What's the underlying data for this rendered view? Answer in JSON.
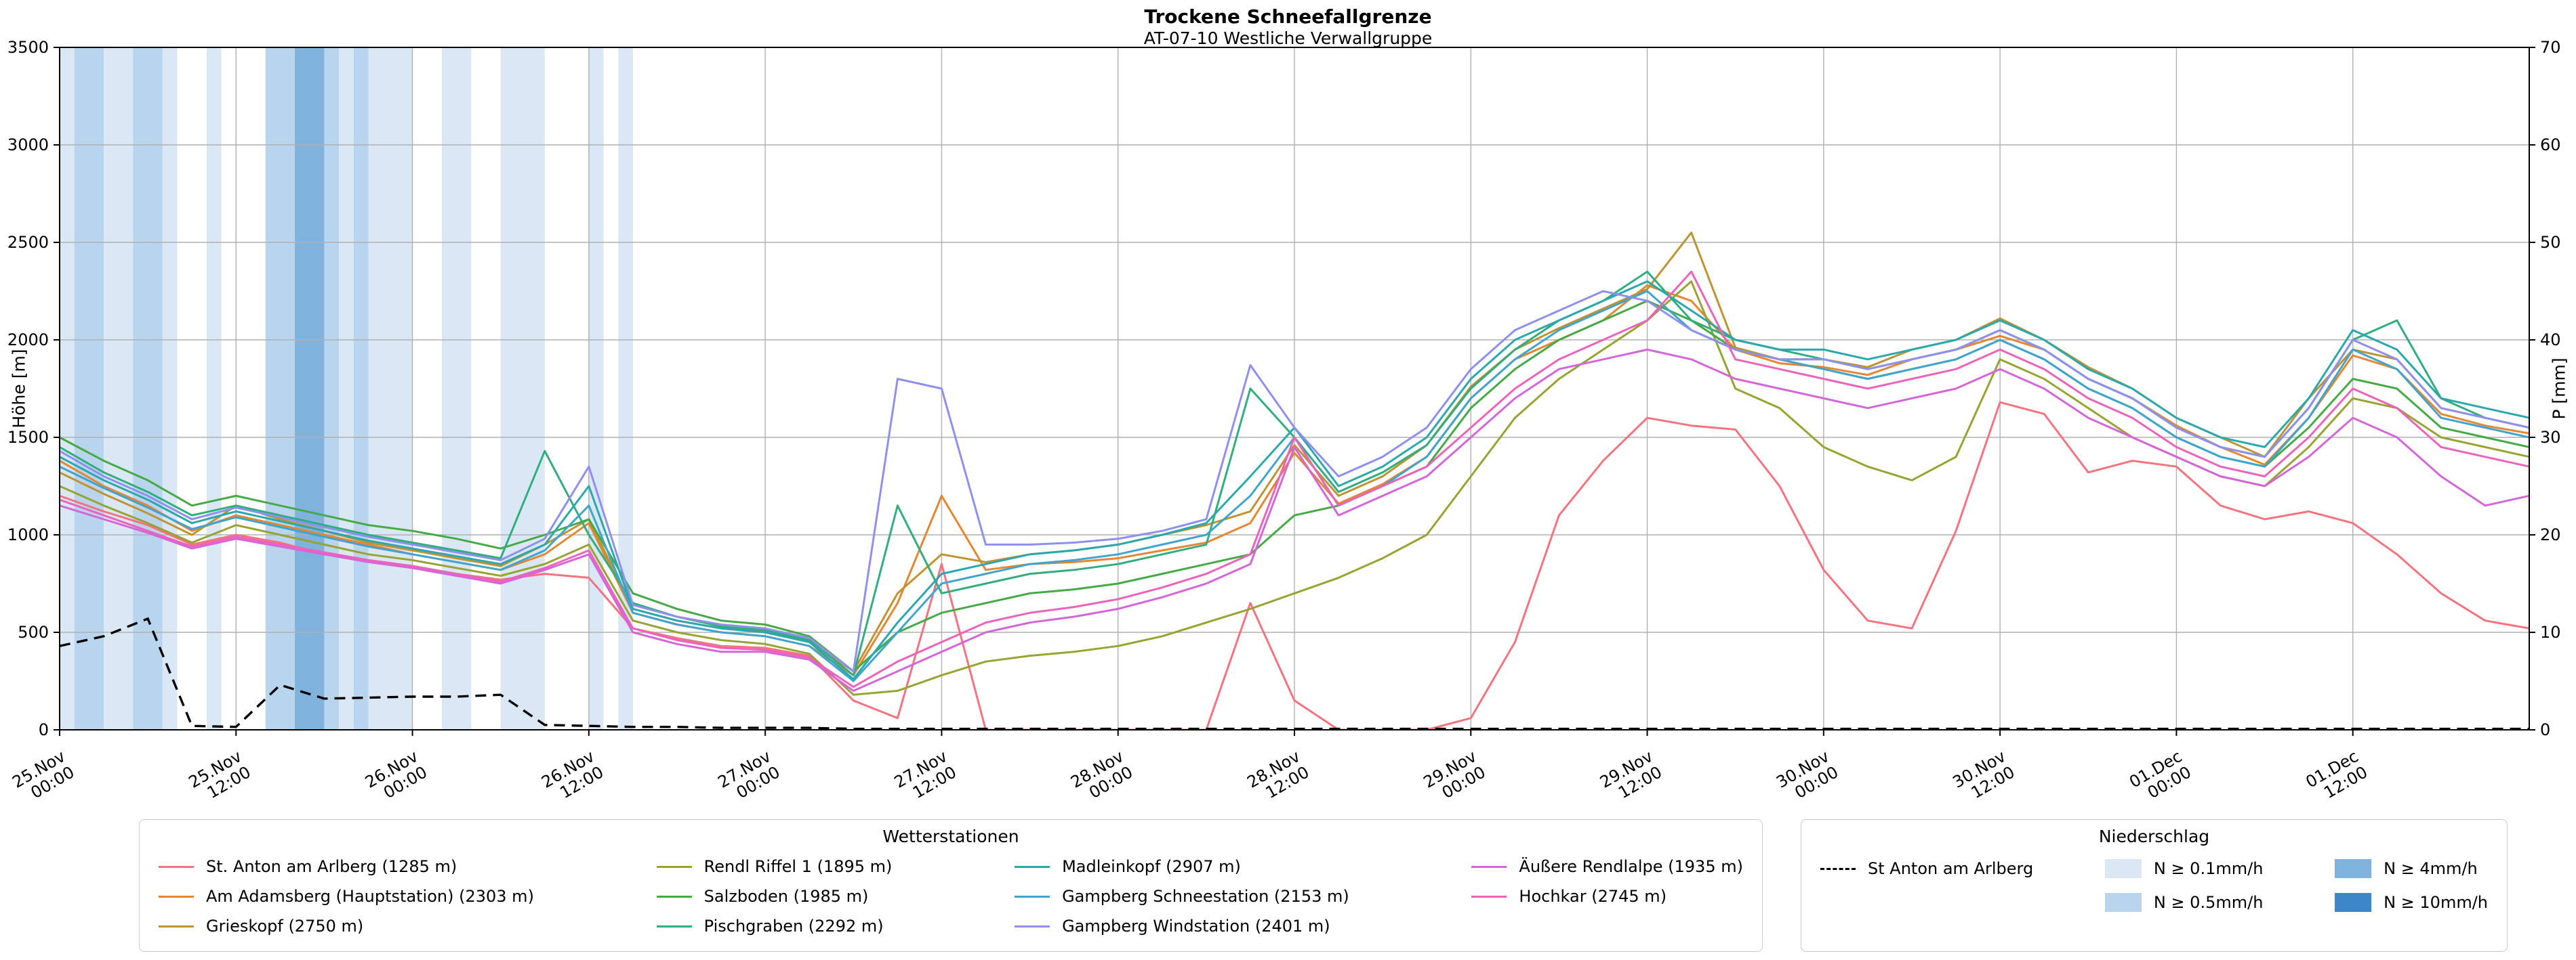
{
  "title": "Trockene Schneefallgrenze",
  "subtitle": "AT-07-10 Westliche Verwallgruppe",
  "axes": {
    "y_left_label": "Höhe [m]",
    "y_right_label": "P [mm]",
    "y_left_ticks": [
      0,
      500,
      1000,
      1500,
      2000,
      2500,
      3000,
      3500
    ],
    "y_right_ticks": [
      0,
      10,
      20,
      30,
      40,
      50,
      60,
      70
    ],
    "x_ticks": [
      {
        "h": 0,
        "date": "25.Nov",
        "time": "00:00"
      },
      {
        "h": 12,
        "date": "25.Nov",
        "time": "12:00"
      },
      {
        "h": 24,
        "date": "26.Nov",
        "time": "00:00"
      },
      {
        "h": 36,
        "date": "26.Nov",
        "time": "12:00"
      },
      {
        "h": 48,
        "date": "27.Nov",
        "time": "00:00"
      },
      {
        "h": 60,
        "date": "27.Nov",
        "time": "12:00"
      },
      {
        "h": 72,
        "date": "28.Nov",
        "time": "00:00"
      },
      {
        "h": 84,
        "date": "28.Nov",
        "time": "12:00"
      },
      {
        "h": 96,
        "date": "29.Nov",
        "time": "00:00"
      },
      {
        "h": 108,
        "date": "29.Nov",
        "time": "12:00"
      },
      {
        "h": 120,
        "date": "30.Nov",
        "time": "00:00"
      },
      {
        "h": 132,
        "date": "30.Nov",
        "time": "12:00"
      },
      {
        "h": 144,
        "date": "01.Dec",
        "time": "00:00"
      },
      {
        "h": 156,
        "date": "01.Dec",
        "time": "12:00"
      }
    ]
  },
  "legend_stations": {
    "title": "Wetterstationen"
  },
  "legend_precip": {
    "title": "Niederschlag",
    "line_label": "St Anton am Arlberg",
    "levels": [
      {
        "label": "N ≥ 0.1mm/h",
        "color": "#dae8f6"
      },
      {
        "label": "N ≥ 0.5mm/h",
        "color": "#b9d5ee"
      },
      {
        "label": "N ≥ 4mm/h",
        "color": "#7fb3de"
      },
      {
        "label": "N ≥ 10mm/h",
        "color": "#3d87c8"
      }
    ]
  },
  "chart_data": {
    "type": "line",
    "title": "Trockene Schneefallgrenze",
    "grid": true,
    "xlim_hours": [
      0,
      168
    ],
    "ylim_left": [
      0,
      3500
    ],
    "ylim_right": [
      0,
      70
    ],
    "hours": [
      0,
      3,
      6,
      9,
      12,
      15,
      18,
      21,
      24,
      27,
      30,
      33,
      36,
      39,
      42,
      45,
      48,
      51,
      54,
      57,
      60,
      63,
      66,
      69,
      72,
      75,
      78,
      81,
      84,
      87,
      90,
      93,
      96,
      99,
      102,
      105,
      108,
      111,
      114,
      117,
      120,
      123,
      126,
      129,
      132,
      135,
      138,
      141,
      144,
      147,
      150,
      153,
      156,
      159,
      162,
      165,
      168
    ],
    "series": [
      {
        "name": "St. Anton am Arlberg (1285 m)",
        "color": "#f4737f",
        "values_m": [
          1200,
          1120,
          1050,
          950,
          1000,
          960,
          900,
          870,
          840,
          800,
          770,
          800,
          780,
          520,
          470,
          430,
          420,
          380,
          150,
          60,
          850,
          0,
          0,
          0,
          0,
          0,
          0,
          650,
          150,
          0,
          0,
          0,
          60,
          450,
          1100,
          1380,
          1600,
          1560,
          1540,
          1250,
          820,
          560,
          520,
          1020,
          1680,
          1620,
          1320,
          1380,
          1350,
          1150,
          1080,
          1120,
          1060,
          900,
          700,
          560,
          520
        ]
      },
      {
        "name": "Am Adamsberg (Hauptstation) (2303 m)",
        "color": "#e6862f",
        "values_m": [
          1380,
          1250,
          1150,
          1020,
          1100,
          1050,
          1000,
          950,
          900,
          860,
          820,
          900,
          1060,
          600,
          540,
          500,
          480,
          430,
          280,
          650,
          1200,
          820,
          850,
          860,
          880,
          920,
          960,
          1060,
          1420,
          1160,
          1260,
          1400,
          1700,
          1900,
          2000,
          2100,
          2280,
          2200,
          1950,
          1880,
          1860,
          1820,
          1900,
          1950,
          2020,
          1950,
          1800,
          1700,
          1560,
          1450,
          1360,
          1600,
          1920,
          1850,
          1620,
          1560,
          1520
        ]
      },
      {
        "name": "Grieskopf (2750 m)",
        "color": "#bf9430",
        "values_m": [
          1320,
          1210,
          1110,
          1000,
          1150,
          1080,
          1020,
          960,
          920,
          880,
          840,
          950,
          1080,
          620,
          560,
          520,
          500,
          450,
          300,
          700,
          900,
          860,
          900,
          920,
          950,
          1000,
          1050,
          1120,
          1460,
          1200,
          1300,
          1460,
          1760,
          1950,
          2060,
          2160,
          2260,
          2550,
          1960,
          1900,
          1900,
          1860,
          1950,
          2000,
          2110,
          2000,
          1860,
          1750,
          1600,
          1500,
          1400,
          1700,
          1950,
          1900,
          1650,
          1600,
          1550
        ]
      },
      {
        "name": "Rendl Riffel 1 (1895 m)",
        "color": "#97a431",
        "values_m": [
          1250,
          1150,
          1060,
          960,
          1050,
          1000,
          950,
          900,
          870,
          830,
          790,
          850,
          950,
          560,
          500,
          460,
          440,
          390,
          180,
          200,
          280,
          350,
          380,
          400,
          430,
          480,
          550,
          620,
          700,
          780,
          880,
          1000,
          1300,
          1600,
          1800,
          1950,
          2100,
          2300,
          1750,
          1650,
          1450,
          1350,
          1280,
          1400,
          1900,
          1800,
          1650,
          1500,
          1400,
          1300,
          1250,
          1450,
          1700,
          1650,
          1500,
          1450,
          1400
        ]
      },
      {
        "name": "Salzboden (1985 m)",
        "color": "#45aa45",
        "values_m": [
          1500,
          1380,
          1280,
          1150,
          1200,
          1150,
          1100,
          1050,
          1020,
          980,
          930,
          1000,
          1080,
          700,
          620,
          560,
          540,
          480,
          300,
          500,
          600,
          650,
          700,
          720,
          750,
          800,
          850,
          900,
          1100,
          1150,
          1250,
          1350,
          1650,
          1850,
          2000,
          2100,
          2200,
          2100,
          1950,
          1900,
          1850,
          1800,
          1850,
          1900,
          2000,
          1900,
          1750,
          1650,
          1500,
          1400,
          1350,
          1550,
          1800,
          1750,
          1550,
          1500,
          1450
        ]
      },
      {
        "name": "Pischgraben (2292 m)",
        "color": "#30ae7e",
        "values_m": [
          1450,
          1320,
          1220,
          1100,
          1150,
          1100,
          1050,
          1000,
          960,
          920,
          880,
          1430,
          1000,
          650,
          580,
          530,
          510,
          460,
          280,
          1150,
          700,
          750,
          800,
          820,
          850,
          900,
          950,
          1750,
          1500,
          1220,
          1320,
          1460,
          1750,
          1950,
          2100,
          2200,
          2350,
          2100,
          2000,
          1950,
          1900,
          1850,
          1900,
          1950,
          2050,
          1950,
          1800,
          1700,
          1550,
          1450,
          1400,
          1650,
          2000,
          2100,
          1700,
          1600,
          1550
        ]
      },
      {
        "name": "Madleinkopf (2907 m)",
        "color": "#2aa8ad",
        "values_m": [
          1400,
          1280,
          1180,
          1060,
          1120,
          1070,
          1020,
          970,
          930,
          890,
          850,
          950,
          1250,
          620,
          560,
          520,
          500,
          450,
          260,
          550,
          800,
          850,
          900,
          920,
          950,
          1000,
          1060,
          1300,
          1550,
          1250,
          1350,
          1500,
          1800,
          2000,
          2100,
          2200,
          2300,
          2150,
          2000,
          1950,
          1950,
          1900,
          1950,
          2000,
          2100,
          2000,
          1850,
          1750,
          1600,
          1500,
          1450,
          1700,
          2050,
          1950,
          1700,
          1650,
          1600
        ]
      },
      {
        "name": "Gampberg Schneestation (2153 m)",
        "color": "#3fa5cf",
        "values_m": [
          1350,
          1240,
          1140,
          1030,
          1090,
          1040,
          990,
          940,
          900,
          860,
          820,
          920,
          1150,
          600,
          540,
          500,
          480,
          430,
          250,
          500,
          750,
          800,
          850,
          870,
          900,
          950,
          1000,
          1200,
          1500,
          1150,
          1250,
          1400,
          1700,
          1900,
          2050,
          2150,
          2250,
          2050,
          1950,
          1900,
          1850,
          1800,
          1850,
          1900,
          2000,
          1900,
          1750,
          1650,
          1500,
          1400,
          1350,
          1600,
          1950,
          1850,
          1600,
          1550,
          1500
        ]
      },
      {
        "name": "Gampberg Windstation (2401 m)",
        "color": "#8f8fed",
        "values_m": [
          1430,
          1300,
          1200,
          1080,
          1140,
          1090,
          1040,
          990,
          950,
          910,
          870,
          980,
          1350,
          640,
          580,
          540,
          520,
          470,
          300,
          1800,
          1750,
          950,
          950,
          960,
          980,
          1020,
          1080,
          1870,
          1550,
          1300,
          1400,
          1550,
          1850,
          2050,
          2150,
          2250,
          2200,
          2050,
          1950,
          1900,
          1900,
          1850,
          1900,
          1950,
          2050,
          1950,
          1800,
          1700,
          1550,
          1450,
          1400,
          1650,
          2000,
          1900,
          1650,
          1600,
          1550
        ]
      },
      {
        "name": "Äußere Rendlalpe (1935 m)",
        "color": "#d466da",
        "values_m": [
          1150,
          1080,
          1010,
          930,
          980,
          940,
          900,
          860,
          830,
          790,
          750,
          820,
          900,
          500,
          440,
          400,
          400,
          360,
          200,
          300,
          400,
          500,
          550,
          580,
          620,
          680,
          750,
          850,
          1450,
          1100,
          1200,
          1300,
          1500,
          1700,
          1850,
          1900,
          1950,
          1900,
          1800,
          1750,
          1700,
          1650,
          1700,
          1750,
          1850,
          1750,
          1600,
          1500,
          1400,
          1300,
          1250,
          1400,
          1600,
          1500,
          1300,
          1150,
          1200
        ]
      },
      {
        "name": "Hochkar (2745 m)",
        "color": "#ec63bb",
        "values_m": [
          1180,
          1100,
          1020,
          940,
          990,
          950,
          910,
          870,
          840,
          800,
          760,
          830,
          920,
          520,
          460,
          420,
          410,
          370,
          220,
          350,
          450,
          550,
          600,
          630,
          670,
          730,
          800,
          900,
          1500,
          1150,
          1250,
          1350,
          1550,
          1750,
          1900,
          2000,
          2100,
          2350,
          1900,
          1850,
          1800,
          1750,
          1800,
          1850,
          1950,
          1850,
          1700,
          1600,
          1450,
          1350,
          1300,
          1500,
          1750,
          1650,
          1450,
          1400,
          1350
        ]
      }
    ],
    "precip_line": {
      "name": "St Anton am Arlberg",
      "color": "#000000",
      "dashed": true,
      "values_mm": [
        8.6,
        9.6,
        11.4,
        0.4,
        0.3,
        4.6,
        3.2,
        3.3,
        3.4,
        3.4,
        3.6,
        0.5,
        0.4,
        0.3,
        0.3,
        0.2,
        0.2,
        0.2,
        0.1,
        0.1,
        0.1,
        0.1,
        0.1,
        0.1,
        0.1,
        0.1,
        0.1,
        0.1,
        0.1,
        0.1,
        0.1,
        0.1,
        0.1,
        0.1,
        0.1,
        0.1,
        0.1,
        0.1,
        0.1,
        0.1,
        0.1,
        0.1,
        0.1,
        0.1,
        0.1,
        0.1,
        0.1,
        0.1,
        0.1,
        0.1,
        0.1,
        0.1,
        0.1,
        0.1,
        0.1,
        0.1,
        0.1
      ]
    },
    "precip_bands": [
      {
        "from_h": 0,
        "to_h": 1,
        "level": 1
      },
      {
        "from_h": 1,
        "to_h": 3,
        "level": 2
      },
      {
        "from_h": 3,
        "to_h": 5,
        "level": 1
      },
      {
        "from_h": 5,
        "to_h": 7,
        "level": 2
      },
      {
        "from_h": 7,
        "to_h": 8,
        "level": 1
      },
      {
        "from_h": 10,
        "to_h": 11,
        "level": 1
      },
      {
        "from_h": 14,
        "to_h": 16,
        "level": 2
      },
      {
        "from_h": 16,
        "to_h": 18,
        "level": 3
      },
      {
        "from_h": 18,
        "to_h": 19,
        "level": 2
      },
      {
        "from_h": 19,
        "to_h": 20,
        "level": 1
      },
      {
        "from_h": 20,
        "to_h": 21,
        "level": 2
      },
      {
        "from_h": 21,
        "to_h": 24,
        "level": 1
      },
      {
        "from_h": 26,
        "to_h": 28,
        "level": 1
      },
      {
        "from_h": 30,
        "to_h": 33,
        "level": 1
      },
      {
        "from_h": 36,
        "to_h": 37,
        "level": 1
      },
      {
        "from_h": 38,
        "to_h": 39,
        "level": 1
      }
    ]
  }
}
